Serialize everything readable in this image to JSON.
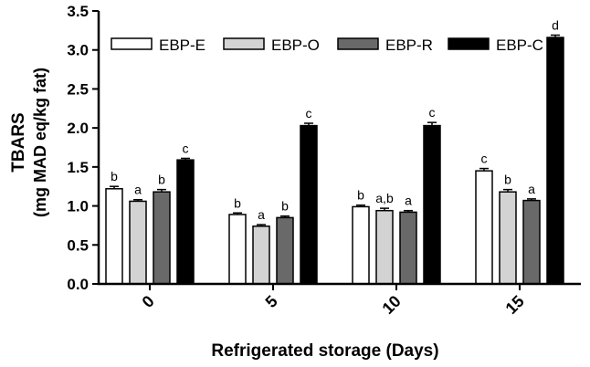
{
  "chart_data": {
    "type": "bar",
    "xlabel": "Refrigerated storage (Days)",
    "ylabel_line1": "TBARS",
    "ylabel_line2": "(mg MAD eq/kg fat)",
    "categories": [
      "0",
      "5",
      "10",
      "15"
    ],
    "ylim": [
      0,
      3.5
    ],
    "yticks": [
      "0.0",
      "0.5",
      "1.0",
      "1.5",
      "2.0",
      "2.5",
      "3.0",
      "3.5"
    ],
    "legend_position": "top",
    "series": [
      {
        "name": "EBP-E",
        "color": "#ffffff",
        "values": [
          1.22,
          0.89,
          0.99,
          1.45
        ],
        "errors": [
          0.03,
          0.02,
          0.02,
          0.03
        ],
        "letters": [
          "b",
          "b",
          "b",
          "c"
        ]
      },
      {
        "name": "EBP-O",
        "color": "#d3d3d3",
        "values": [
          1.06,
          0.74,
          0.94,
          1.18
        ],
        "errors": [
          0.02,
          0.02,
          0.03,
          0.03
        ],
        "letters": [
          "a",
          "a",
          "a,b",
          "b"
        ]
      },
      {
        "name": "EBP-R",
        "color": "#696969",
        "values": [
          1.18,
          0.85,
          0.92,
          1.07
        ],
        "errors": [
          0.03,
          0.02,
          0.02,
          0.02
        ],
        "letters": [
          "b",
          "b",
          "a",
          "a"
        ]
      },
      {
        "name": "EBP-C",
        "color": "#000000",
        "values": [
          1.59,
          2.03,
          2.03,
          3.16
        ],
        "errors": [
          0.02,
          0.03,
          0.04,
          0.03
        ],
        "letters": [
          "c",
          "c",
          "c",
          "d"
        ]
      }
    ]
  }
}
